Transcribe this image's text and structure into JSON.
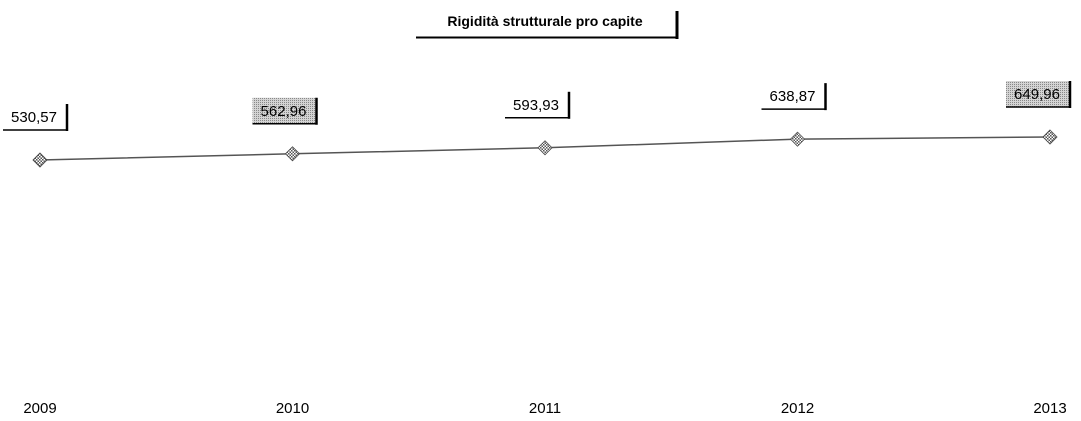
{
  "chart_data": {
    "type": "line",
    "title": "Rigidità strutturale pro capite",
    "categories": [
      "2009",
      "2010",
      "2011",
      "2012",
      "2013"
    ],
    "series": [
      {
        "values": [
          530.57,
          562.96,
          593.93,
          638.87,
          649.96
        ]
      }
    ],
    "data_labels": [
      "530,57",
      "562,96",
      "593,93",
      "638,87",
      "649,96"
    ],
    "xlabel": "",
    "ylabel": "",
    "grid": false,
    "legend": "none",
    "colors": {
      "line": "#555555",
      "marker": "#888888",
      "label_text": "#000000"
    }
  }
}
